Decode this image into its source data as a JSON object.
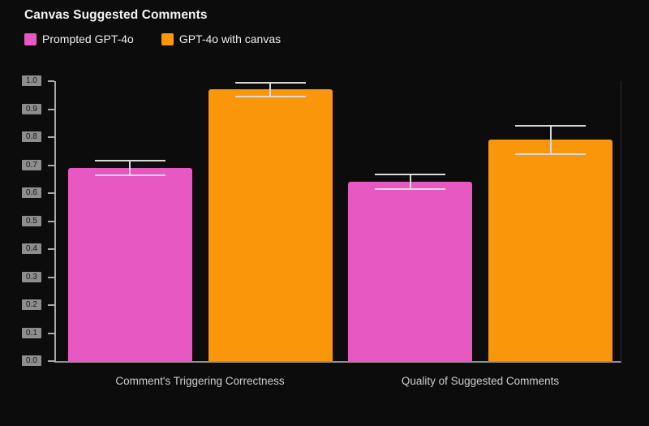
{
  "title": "Canvas Suggested Comments",
  "legend": {
    "items": [
      {
        "label": "Prompted GPT-4o",
        "color": "#e858c3"
      },
      {
        "label": "GPT-4o with canvas",
        "color": "#fa960a"
      }
    ]
  },
  "chart_data": {
    "type": "bar",
    "title": "Canvas Suggested Comments",
    "categories": [
      "Comment's Triggering Correctness",
      "Quality of Suggested Comments"
    ],
    "series": [
      {
        "name": "Prompted GPT-4o",
        "color": "#e858c3",
        "values": [
          0.69,
          0.64
        ],
        "errors": [
          0.027,
          0.026
        ]
      },
      {
        "name": "GPT-4o with canvas",
        "color": "#fa960a",
        "values": [
          0.97,
          0.79
        ],
        "errors": [
          0.025,
          0.052
        ]
      }
    ],
    "xlabel": "",
    "ylabel": "",
    "ylim": [
      0.0,
      1.0
    ],
    "yticks": [
      "0.0",
      "0.1",
      "0.2",
      "0.3",
      "0.4",
      "0.5",
      "0.6",
      "0.7",
      "0.8",
      "0.9",
      "1.0"
    ],
    "grid": false,
    "legend_position": "top-left",
    "background": "#0c0c0c",
    "error_bar_color": "#d9d9d9"
  }
}
